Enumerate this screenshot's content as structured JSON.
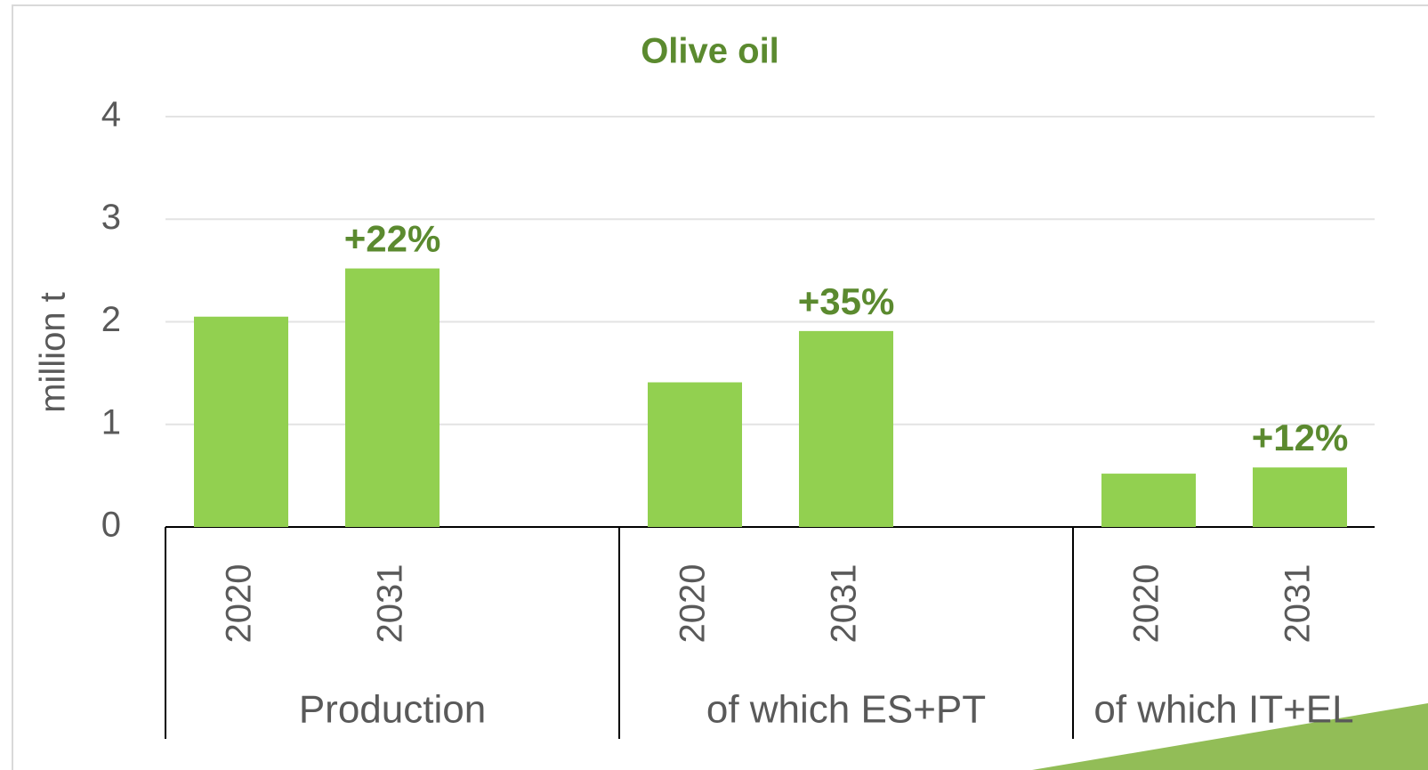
{
  "chart_data": {
    "type": "bar",
    "title": "Olive oil",
    "y_label": "million t",
    "color": "#92d050",
    "title_color": "#5b8a2f",
    "ylim": [
      0,
      4
    ],
    "yticks": [
      0,
      1,
      2,
      3,
      4
    ],
    "grid": true,
    "groups": [
      {
        "name": "Production",
        "categories": [
          "2020",
          "2031"
        ],
        "values": [
          2.05,
          2.52
        ],
        "annotation": "+22%"
      },
      {
        "name": "of which ES+PT",
        "categories": [
          "2020",
          "2031"
        ],
        "values": [
          1.41,
          1.91
        ],
        "annotation": "+35%"
      },
      {
        "name": "of which IT+EL",
        "categories": [
          "2020",
          "2031"
        ],
        "values": [
          0.52,
          0.58
        ],
        "annotation": "+12%"
      }
    ]
  }
}
